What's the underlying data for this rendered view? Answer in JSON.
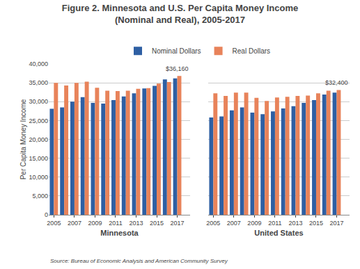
{
  "chart_data": [
    {
      "type": "bar",
      "title": "Figure 2. Minnesota and U.S. Per Capita Money Income\n(Nominal and Real), 2005-2017",
      "xlabel": "Minnesota",
      "ylabel": "Per Capita Money Income",
      "categories": [
        2005,
        null,
        2007,
        null,
        2009,
        null,
        2011,
        null,
        2013,
        null,
        2015,
        null,
        2017
      ],
      "series": [
        {
          "name": "Nominal Dollars",
          "color": "#2E5FA3",
          "values": [
            28100,
            28500,
            30000,
            31200,
            29700,
            29500,
            30400,
            31400,
            32200,
            33500,
            34200,
            35900,
            36160
          ]
        },
        {
          "name": "Real Dollars",
          "color": "#E8835A",
          "values": [
            35000,
            34300,
            35000,
            35300,
            33700,
            32900,
            32800,
            32900,
            33400,
            33600,
            34800,
            35200,
            36800
          ]
        }
      ],
      "ylim": [
        0,
        40000
      ],
      "yticks": [
        0,
        {
          "value": 5000,
          "label": "5,000"
        },
        {
          "value": 10000,
          "label": "10,000"
        },
        {
          "value": 15000,
          "label": "15,000"
        },
        {
          "value": 20000,
          "label": "20,000"
        },
        {
          "value": 25000,
          "label": "25,000"
        },
        {
          "value": 30000,
          "label": "30,000"
        },
        {
          "value": 35000,
          "label": "35,000"
        },
        {
          "value": 40000,
          "label": "40,000"
        }
      ],
      "grid": true,
      "legend": "upper center",
      "annotations": [
        {
          "text": "$36,160",
          "x": 2017,
          "y": 36800
        },
        {
          "text": "Source: Bureau of Economic Analysis and American Community Survey"
        }
      ]
    },
    {
      "type": "bar",
      "xlabel": "United States",
      "categories": [
        2005,
        null,
        2007,
        null,
        2009,
        null,
        2011,
        null,
        2013,
        null,
        2015,
        null,
        2017
      ],
      "series": [
        {
          "name": "Nominal Dollars",
          "color": "#2E5FA3",
          "values": [
            25800,
            26100,
            27700,
            28500,
            27100,
            26700,
            27400,
            28200,
            28800,
            29700,
            30400,
            31900,
            32400
          ]
        },
        {
          "name": "Real Dollars",
          "color": "#E8835A",
          "values": [
            32200,
            31500,
            32400,
            32400,
            31000,
            30200,
            31100,
            31300,
            31500,
            31600,
            32200,
            32900,
            33100
          ]
        }
      ],
      "ylim": [
        0,
        40000
      ],
      "yticks": [
        0,
        5000,
        10000,
        15000,
        20000,
        25000,
        30000,
        35000,
        40000
      ],
      "grid": true,
      "tick_labels": "x",
      "annotations": [
        {
          "text": "$32,400",
          "x": 2017,
          "y": 33100
        }
      ]
    }
  ]
}
